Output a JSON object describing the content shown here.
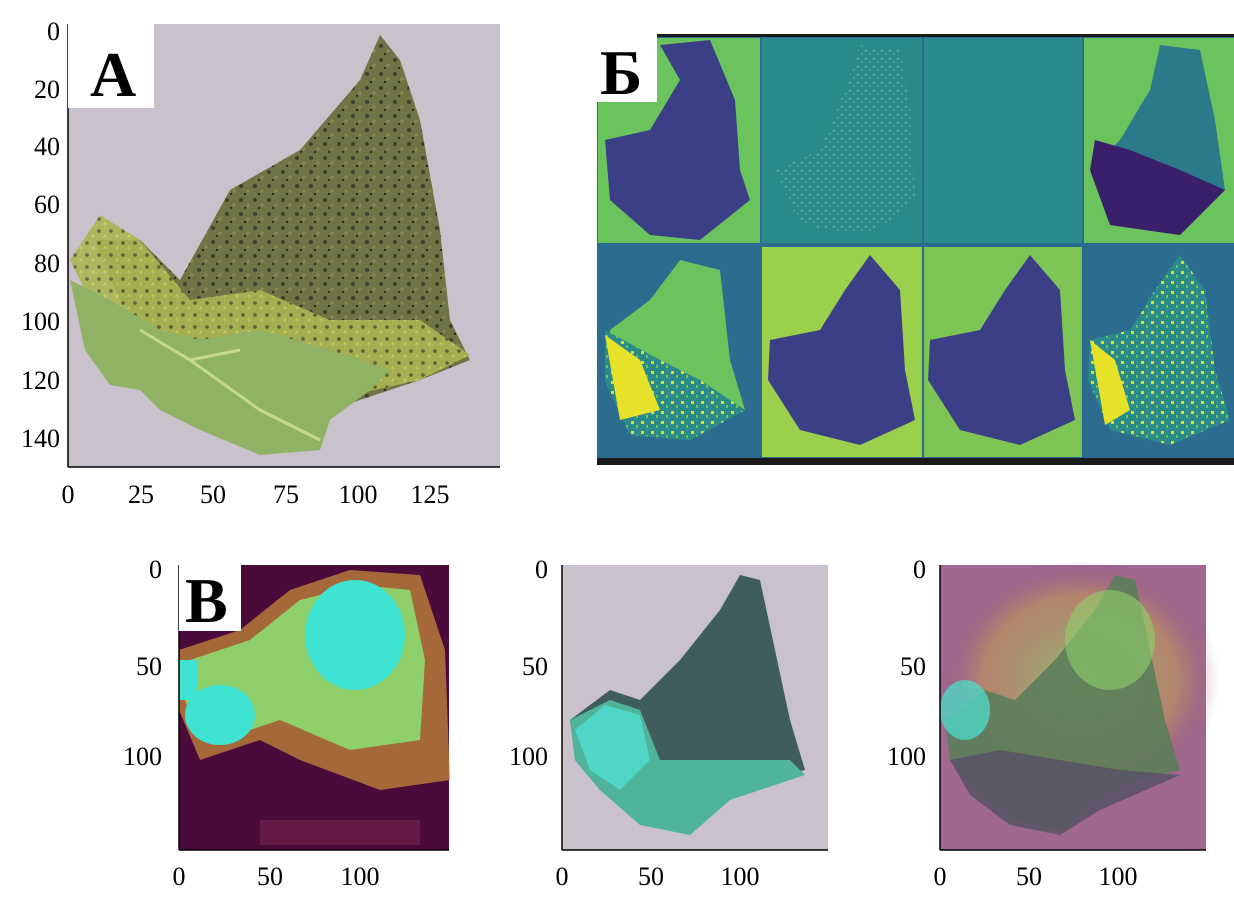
{
  "figure": {
    "panel_a": {
      "label": "А",
      "y_ticks": [
        "0",
        "20",
        "40",
        "60",
        "80",
        "100",
        "120",
        "140"
      ],
      "x_ticks": [
        "0",
        "25",
        "50",
        "75",
        "100",
        "125"
      ]
    },
    "panel_b": {
      "label": "Б",
      "feature_maps": 8
    },
    "panel_c": {
      "label": "В",
      "subplots": [
        {
          "name": "heatmap",
          "y_ticks": [
            "0",
            "50",
            "100"
          ],
          "x_ticks": [
            "0",
            "50",
            "100"
          ]
        },
        {
          "name": "original",
          "y_ticks": [
            "0",
            "50",
            "100"
          ],
          "x_ticks": [
            "0",
            "50",
            "100"
          ]
        },
        {
          "name": "overlay",
          "y_ticks": [
            "0",
            "50",
            "100"
          ],
          "x_ticks": [
            "0",
            "50",
            "100"
          ]
        }
      ]
    }
  },
  "colors": {
    "background_grey": "#c9c1cc",
    "leaf_green": "#8fb265",
    "leaf_dark": "#6f7445",
    "viridis_dark": "#3b3f86",
    "viridis_teal": "#2b8b8a",
    "viridis_green": "#6bc35d",
    "viridis_yellow": "#e6e22a",
    "heat_purple": "#4a0a3a",
    "heat_cyan": "#3fe3d2"
  }
}
